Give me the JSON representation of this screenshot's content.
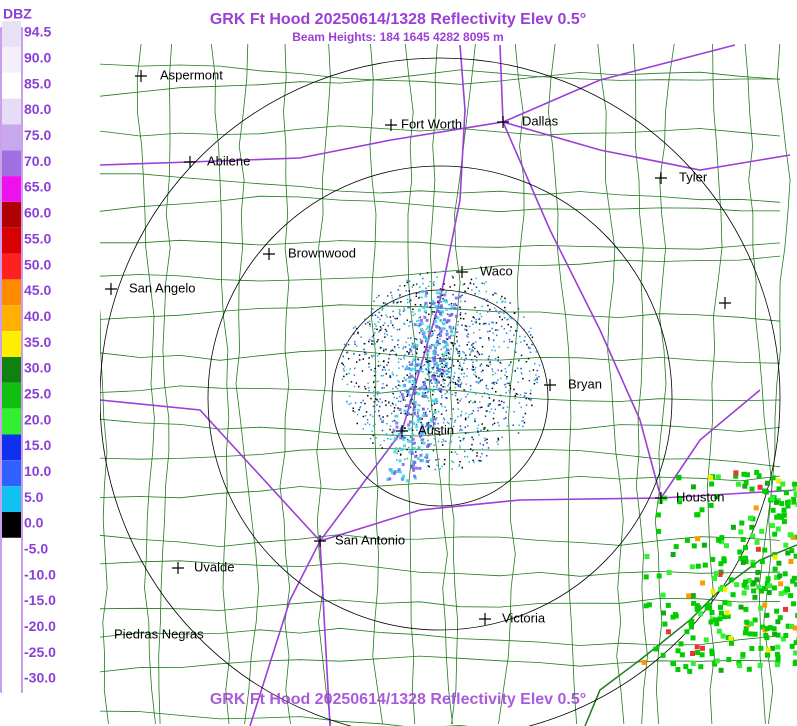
{
  "header": {
    "title": "GRK Ft Hood 20250614/1328 Reflectivity Elev 0.5°",
    "subtitle": "Beam Heights: 184 1645 4282 8095 m"
  },
  "scale": {
    "unit": "DBZ",
    "labels": [
      "94.5",
      "90.0",
      "85.0",
      "80.0",
      "75.0",
      "70.0",
      "65.0",
      "60.0",
      "55.0",
      "50.0",
      "45.0",
      "40.0",
      "35.0",
      "30.0",
      "25.0",
      "20.0",
      "15.0",
      "10.0",
      "5.0",
      "0.0",
      "-5.0",
      "-10.0",
      "-15.0",
      "-20.0",
      "-25.0",
      "-30.0"
    ]
  },
  "cities": [
    "Aspermont",
    "Fort Worth",
    "Dallas",
    "Abilene",
    "Tyler",
    "Brownwood",
    "Waco",
    "San Angelo",
    "Bryan",
    "Austin",
    "Houston",
    "San Antonio",
    "Uvalde",
    "Victoria",
    "Piedras Negras"
  ],
  "footer": {
    "title": "GRK Ft Hood 20250614/1328 Reflectivity Elev 0.5°"
  }
}
